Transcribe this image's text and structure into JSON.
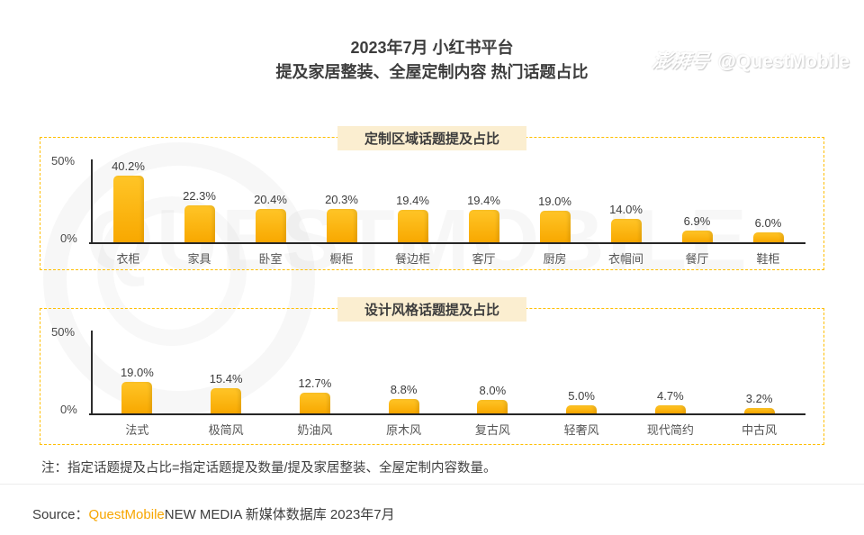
{
  "title": {
    "line1": "2023年7月 小红书平台",
    "line2": "提及家居整装、全屋定制内容 热门话题占比"
  },
  "colors": {
    "bar_top": "#FFC527",
    "bar_bottom": "#F8A800",
    "border_dash": "#FFBF00",
    "pill_bg": "#FBEED0",
    "accent_orange": "#F7A600"
  },
  "chart_data": [
    {
      "type": "bar",
      "title": "定制区域话题提及占比",
      "categories": [
        "衣柜",
        "家具",
        "卧室",
        "橱柜",
        "餐边柜",
        "客厅",
        "厨房",
        "衣帽间",
        "餐厅",
        "鞋柜"
      ],
      "values": [
        40.2,
        22.3,
        20.4,
        20.3,
        19.4,
        19.4,
        19.0,
        14.0,
        6.9,
        6.0
      ],
      "unit": "%",
      "ylim": [
        0,
        50
      ],
      "yticks": [
        "50%",
        "0%"
      ],
      "grid": false,
      "legend": "none"
    },
    {
      "type": "bar",
      "title": "设计风格话题提及占比",
      "categories": [
        "法式",
        "极简风",
        "奶油风",
        "原木风",
        "复古风",
        "轻奢风",
        "现代简约",
        "中古风"
      ],
      "values": [
        19.0,
        15.4,
        12.7,
        8.8,
        8.0,
        5.0,
        4.7,
        3.2
      ],
      "unit": "%",
      "ylim": [
        0,
        50
      ],
      "yticks": [
        "50%",
        "0%"
      ],
      "grid": false,
      "legend": "none"
    }
  ],
  "note": "注：指定话题提及占比=指定话题提及数量/提及家居整装、全屋定制内容数量。",
  "source": {
    "prefix": "Source：",
    "brand": "QuestMobile",
    "suffix": "NEW MEDIA 新媒体数据库 2023年7月"
  },
  "watermark": {
    "background_text": "QUESTMOBILE",
    "corner_cn": "澎湃号",
    "corner_handle": "@QuestMobile"
  }
}
